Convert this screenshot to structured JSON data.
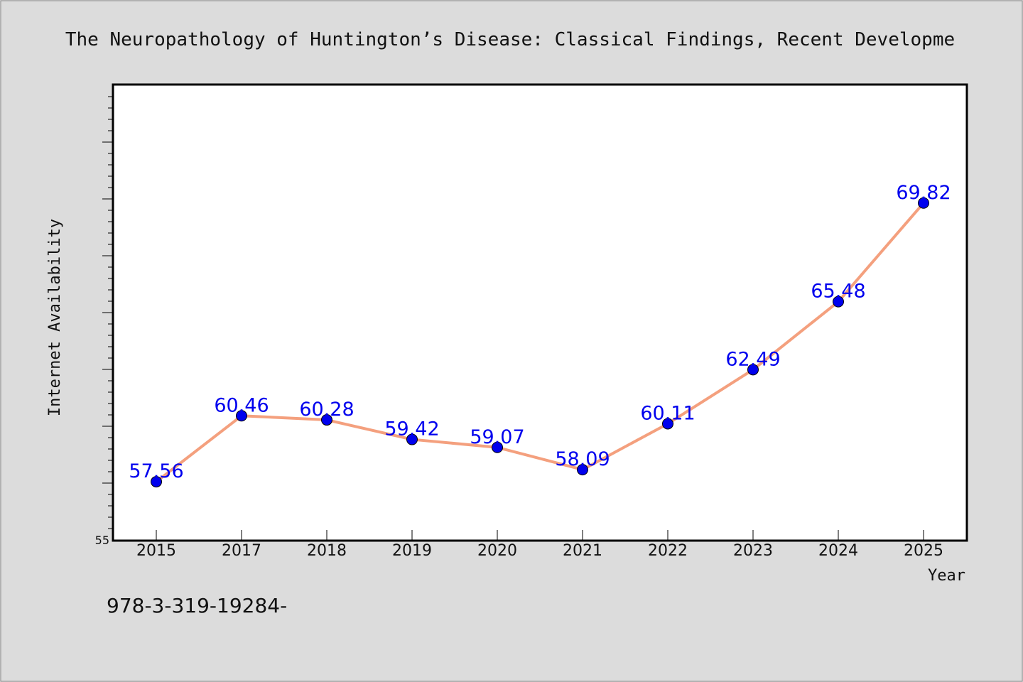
{
  "chart_data": {
    "type": "line",
    "title": "The Neuropathology of Huntington’s Disease: Classical Findings, Recent Developme",
    "xlabel": "Year",
    "ylabel": "Internet Availability",
    "categories": [
      "2015",
      "2017",
      "2018",
      "2019",
      "2020",
      "2021",
      "2022",
      "2023",
      "2024",
      "2025"
    ],
    "series": [
      {
        "values": [
          57.56,
          60.46,
          60.28,
          59.42,
          59.07,
          58.09,
          60.11,
          62.49,
          65.48,
          69.82
        ],
        "data_labels": [
          "57.56",
          "60.46",
          "60.28",
          "59.42",
          "59.07",
          "58.09",
          "60.11",
          "62.49",
          "65.48",
          "69.82"
        ]
      }
    ],
    "ylim": [
      55,
      75
    ],
    "y_tick_labels": [
      "55"
    ],
    "grid": false,
    "line_color": "#f4a07e",
    "marker_color": "#0000ee",
    "label_color": "#0000ee"
  },
  "footer_text": "978-3-319-19284-"
}
